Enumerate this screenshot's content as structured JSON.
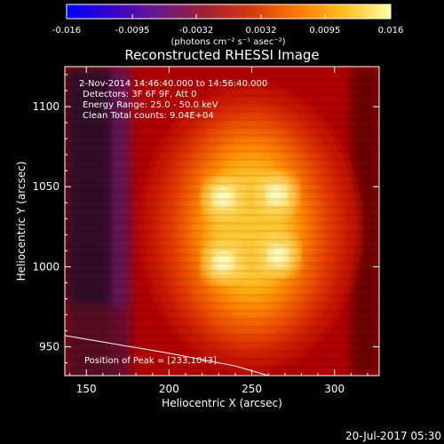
{
  "colorbar": {
    "ticks": [
      "-0.016",
      "-0.0095",
      "-0.0032",
      "0.0032",
      "0.0095",
      "0.016"
    ],
    "tick_values": [
      -0.016,
      -0.0095,
      -0.0032,
      0.0032,
      0.0095,
      0.016
    ],
    "range": [
      -0.016,
      0.016
    ],
    "units": "(photons cm⁻² s⁻¹ asec⁻²)",
    "colormap": [
      "#0000ff",
      "#3a00c8",
      "#6a1a8a",
      "#a02030",
      "#d83a10",
      "#ff7a00",
      "#ffc020",
      "#ffffa0"
    ]
  },
  "plot": {
    "title": "Reconstructed RHESSI Image",
    "annotations": {
      "time": "2-Nov-2014 14:46:40.000 to 14:56:40.000",
      "detectors": "Detectors: 3F 6F 9F, Att 0",
      "energy": "Energy Range: 25.0 - 50.0 keV",
      "clean": "Clean    Total counts: 9.04E+04"
    },
    "peak_label": "Position of Peak = [233,1043]"
  },
  "footer": {
    "date": "20-Jul-2017 05:30"
  },
  "chart_data": {
    "type": "heatmap",
    "title": "Reconstructed RHESSI Image",
    "xlabel": "Heliocentric X (arcsec)",
    "ylabel": "Heliocentric Y (arcsec)",
    "xlim": [
      137,
      327
    ],
    "ylim": [
      932,
      1125
    ],
    "x_ticks": [
      150,
      200,
      250,
      300
    ],
    "y_ticks": [
      950,
      1000,
      1050,
      1100
    ],
    "peak": [
      233,
      1043
    ],
    "sources": [
      {
        "x": 233,
        "y": 1043
      },
      {
        "x": 265,
        "y": 1045
      },
      {
        "x": 233,
        "y": 1003
      },
      {
        "x": 266,
        "y": 1007
      }
    ],
    "limb_line": [
      [
        137,
        957
      ],
      [
        160,
        953
      ],
      [
        200,
        946
      ],
      [
        240,
        938
      ],
      [
        260,
        932
      ]
    ],
    "grid": false
  }
}
